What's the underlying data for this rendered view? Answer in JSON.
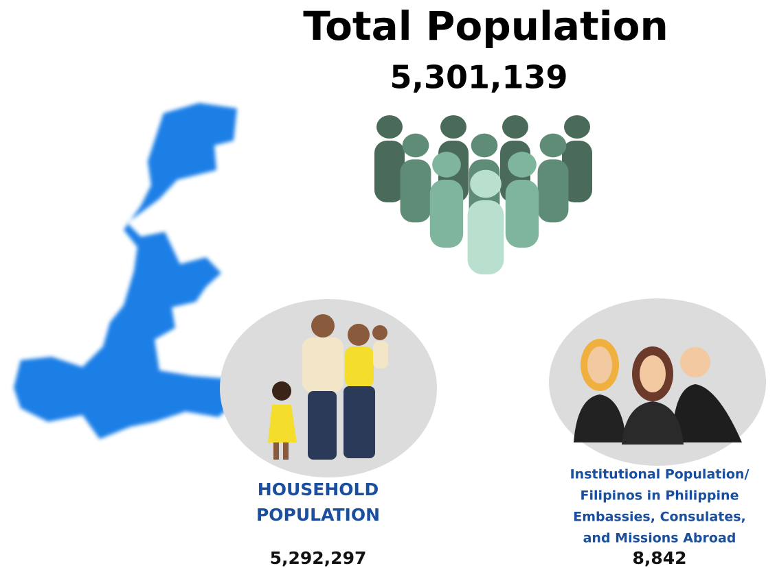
{
  "header": {
    "title": "Total Population",
    "total": "5,301,139"
  },
  "household": {
    "label_lines": [
      "HOUSEHOLD",
      "POPULATION"
    ],
    "value": "5,292,297"
  },
  "institutional": {
    "label_lines": [
      "Institutional Population/",
      "Filipinos in Philippine",
      "Embassies, Consulates,",
      "and Missions Abroad"
    ],
    "value": "8,842"
  }
}
